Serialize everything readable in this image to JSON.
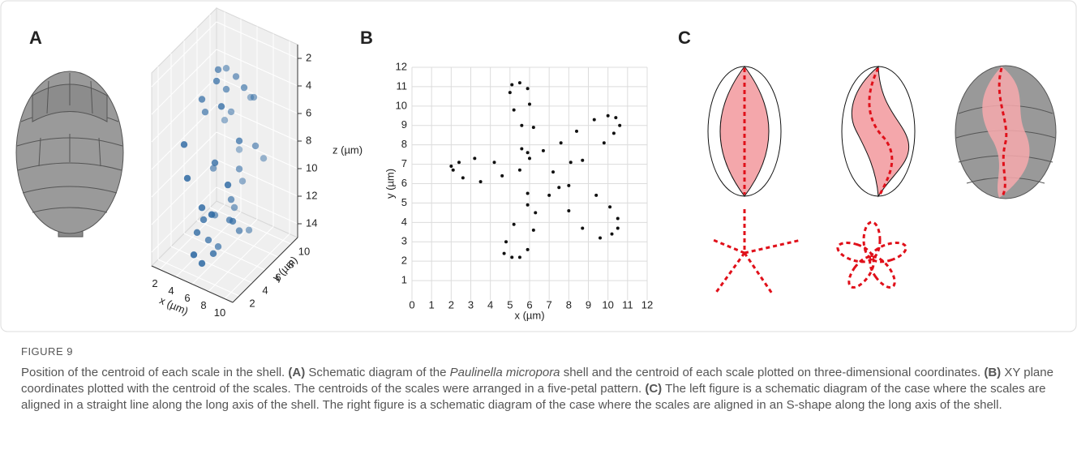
{
  "panel_labels": [
    "A",
    "B",
    "C"
  ],
  "chart_data": [
    {
      "type": "scatter3d",
      "xlabel": "x (µm)",
      "ylabel": "y (µm)",
      "zlabel": "z (µm)",
      "xlim": [
        1,
        11
      ],
      "ylim": [
        1,
        11
      ],
      "zlim": [
        1,
        15
      ],
      "zinverted": true,
      "xticks": [
        2,
        4,
        6,
        8,
        10
      ],
      "yticks": [
        2,
        4,
        6,
        8,
        10
      ],
      "zticks": [
        2,
        4,
        6,
        8,
        10,
        12,
        14
      ],
      "grid": true,
      "series": [
        {
          "name": null,
          "color": "#2f6aa3",
          "x": [
            5.2,
            5.8,
            6.6,
            4.6,
            7.2,
            4.0,
            8.0,
            3.6,
            8.6,
            3.4,
            9.0,
            3.6,
            8.8,
            4.2,
            8.4,
            5.0,
            7.6,
            5.6,
            6.8,
            6.2,
            5.0,
            7.0,
            6.0,
            4.4,
            7.8,
            5.4,
            6.6,
            4.8,
            7.4,
            6.0,
            3.8,
            8.2,
            5.2,
            6.8,
            6.4,
            5.8,
            4.6,
            7.0,
            8.0,
            5.6
          ],
          "y": [
            6.0,
            5.0,
            7.0,
            8.0,
            4.0,
            5.0,
            8.0,
            6.0,
            5.0,
            3.0,
            7.0,
            9.0,
            3.0,
            2.5,
            9.0,
            9.5,
            2.0,
            3.0,
            6.0,
            8.5,
            4.0,
            5.5,
            7.5,
            6.5,
            6.0,
            2.0,
            3.5,
            5.0,
            8.0,
            2.5,
            7.0,
            4.5,
            8.0,
            9.0,
            4.0,
            6.5,
            3.5,
            7.0,
            6.5,
            5.5
          ],
          "z": [
            2.0,
            2.2,
            2.6,
            3.0,
            3.2,
            4.0,
            4.2,
            5.5,
            5.8,
            6.5,
            7.0,
            7.5,
            8.0,
            8.5,
            9.0,
            9.5,
            10.0,
            10.5,
            11.0,
            11.0,
            12.0,
            12.2,
            12.5,
            13.0,
            13.0,
            13.5,
            13.8,
            14.0,
            14.0,
            14.2,
            10.0,
            11.5,
            6.0,
            5.0,
            7.5,
            3.5,
            12.8,
            9.2,
            2.8,
            14.5
          ]
        }
      ]
    },
    {
      "type": "scatter",
      "xlabel": "x (µm)",
      "ylabel": "y (µm)",
      "xlim": [
        0,
        12
      ],
      "ylim": [
        0,
        12
      ],
      "xticks": [
        0,
        1,
        2,
        3,
        4,
        5,
        6,
        7,
        8,
        9,
        10,
        11,
        12
      ],
      "yticks": [
        1,
        2,
        3,
        4,
        5,
        6,
        7,
        8,
        9,
        10,
        11,
        12
      ],
      "grid": true,
      "series": [
        {
          "name": null,
          "color": "#111111",
          "x": [
            2.0,
            2.1,
            2.4,
            2.6,
            3.2,
            3.5,
            4.2,
            4.6,
            5.0,
            5.1,
            5.2,
            5.5,
            5.5,
            5.6,
            5.6,
            5.9,
            6.0,
            5.9,
            6.2,
            6.0,
            6.7,
            5.9,
            5.9,
            6.3,
            6.2,
            5.2,
            4.8,
            4.7,
            5.1,
            5.5,
            5.9,
            7.2,
            7.0,
            7.5,
            7.6,
            8.0,
            8.1,
            8.0,
            8.4,
            8.7,
            8.7,
            9.3,
            9.4,
            9.6,
            9.8,
            10.0,
            10.1,
            10.2,
            10.3,
            10.4,
            10.5,
            10.5,
            10.6
          ],
          "y": [
            6.9,
            6.7,
            7.1,
            6.3,
            7.3,
            6.1,
            7.1,
            6.4,
            10.7,
            11.1,
            9.8,
            11.2,
            6.7,
            9.0,
            7.8,
            10.9,
            10.1,
            7.6,
            8.9,
            7.3,
            7.7,
            5.5,
            4.9,
            4.5,
            3.6,
            3.9,
            3.0,
            2.4,
            2.2,
            2.2,
            2.6,
            6.6,
            5.4,
            5.8,
            8.1,
            5.9,
            7.1,
            4.6,
            8.7,
            7.2,
            3.7,
            9.3,
            5.4,
            3.2,
            8.1,
            9.5,
            4.8,
            3.4,
            8.6,
            9.4,
            4.2,
            3.7,
            9.0
          ]
        }
      ]
    }
  ],
  "caption": {
    "label": "FIGURE 9",
    "intro": "Position of the centroid of each scale in the shell. ",
    "a_label": "(A)",
    "a_text_1": " Schematic diagram of the ",
    "species": "Paulinella micropora",
    "a_text_2": " shell and the centroid of each scale plotted on three-dimensional coordinates. ",
    "b_label": "(B)",
    "b_text": " XY plane coordinates plotted with the centroid of the scales. The centroids of the scales were arranged in a five-petal pattern. ",
    "c_label": "(C)",
    "c_text": " The left figure is a schematic diagram of the case where the scales are aligned in a straight line along the long axis of the shell. The right figure is a schematic diagram of the case where the scales are aligned in an S-shape along the long axis of the shell."
  }
}
